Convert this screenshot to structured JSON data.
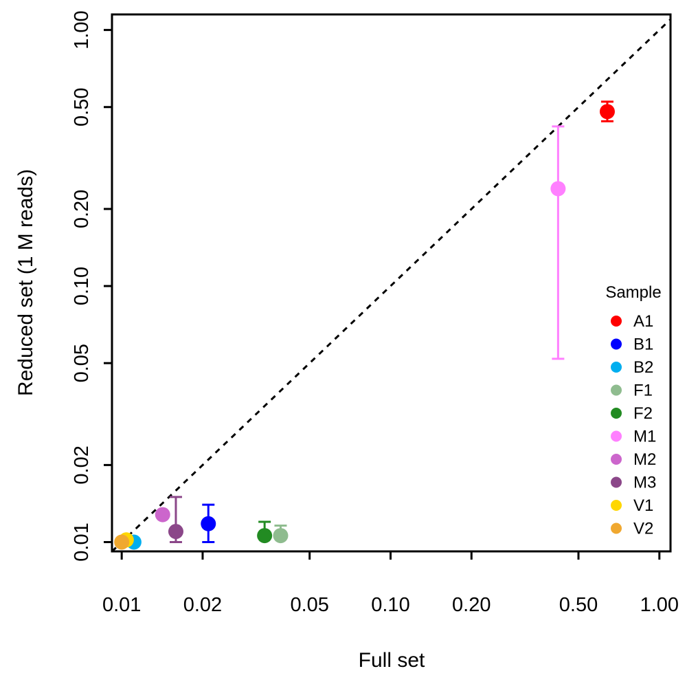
{
  "chart_data": {
    "type": "scatter",
    "xlabel": "Full set",
    "ylabel": "Reduced set (1 M reads)",
    "x_scale": "log",
    "y_scale": "log",
    "xlim": [
      0.0092,
      1.1
    ],
    "ylim": [
      0.0092,
      1.15
    ],
    "x_ticks": [
      {
        "value": 0.01,
        "label": "0.01"
      },
      {
        "value": 0.02,
        "label": "0.02"
      },
      {
        "value": 0.05,
        "label": "0.05"
      },
      {
        "value": 0.1,
        "label": "0.10"
      },
      {
        "value": 0.2,
        "label": "0.20"
      },
      {
        "value": 0.5,
        "label": "0.50"
      },
      {
        "value": 1.0,
        "label": "1.00"
      }
    ],
    "y_ticks": [
      {
        "value": 0.01,
        "label": "0.01"
      },
      {
        "value": 0.02,
        "label": "0.02"
      },
      {
        "value": 0.05,
        "label": "0.05"
      },
      {
        "value": 0.1,
        "label": "0.10"
      },
      {
        "value": 0.2,
        "label": "0.20"
      },
      {
        "value": 0.5,
        "label": "0.50"
      },
      {
        "value": 1.0,
        "label": "1.00"
      }
    ],
    "reference_line": {
      "type": "y=x",
      "style": "dashed",
      "color": "#000000"
    },
    "grid": false,
    "legend": {
      "title": "Sample",
      "position": "right"
    },
    "points": [
      {
        "name": "A1",
        "color": "#FF0000",
        "x": 0.64,
        "y": 0.48,
        "y_low": 0.44,
        "y_high": 0.525
      },
      {
        "name": "B1",
        "color": "#0000FF",
        "x": 0.021,
        "y": 0.0118,
        "y_low": 0.01,
        "y_high": 0.014
      },
      {
        "name": "B2",
        "color": "#00AEEF",
        "x": 0.0111,
        "y": 0.01
      },
      {
        "name": "F1",
        "color": "#8FBC8F",
        "x": 0.039,
        "y": 0.0106,
        "y_low": 0.0106,
        "y_high": 0.0116
      },
      {
        "name": "F2",
        "color": "#228B22",
        "x": 0.034,
        "y": 0.0106,
        "y_low": 0.0106,
        "y_high": 0.012
      },
      {
        "name": "M1",
        "color": "#FF80FF",
        "x": 0.42,
        "y": 0.24,
        "y_low": 0.052,
        "y_high": 0.42
      },
      {
        "name": "M2",
        "color": "#CC66CC",
        "x": 0.0142,
        "y": 0.0128
      },
      {
        "name": "M3",
        "color": "#8B4789",
        "x": 0.0159,
        "y": 0.011,
        "y_low": 0.01,
        "y_high": 0.015
      },
      {
        "name": "V1",
        "color": "#FFD700",
        "x": 0.0104,
        "y": 0.0102
      },
      {
        "name": "V2",
        "color": "#F0A830",
        "x": 0.01,
        "y": 0.01
      }
    ]
  }
}
